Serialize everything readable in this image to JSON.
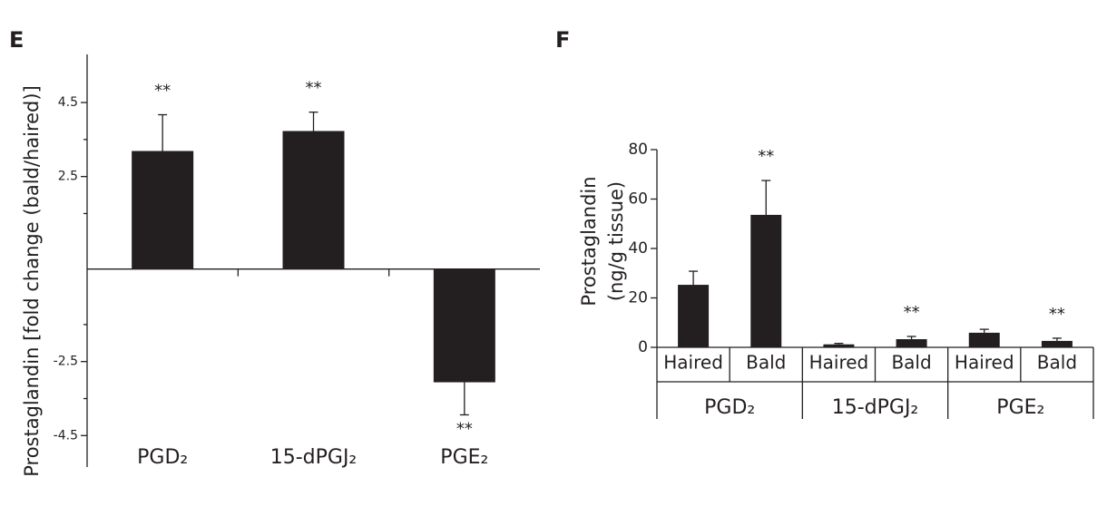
{
  "chart_data": [
    {
      "type": "bar",
      "title": "E",
      "y_label": "Prostaglandin [fold change (bald/haired)]",
      "categories": [
        "PGD₂",
        "15-dPGJ₂",
        "PGE₂"
      ],
      "values": [
        3.19,
        3.73,
        -3.06
      ],
      "errors": [
        0.98,
        0.51,
        0.88
      ],
      "significance": [
        "**",
        "**",
        "**"
      ],
      "color": "#231f20",
      "ylim": [
        -5.35,
        5.8
      ],
      "yticks": [
        -4.5,
        -2.5,
        2.5,
        4.5
      ],
      "minor_yticks": [
        -3.5,
        -1.5,
        1.5,
        3.5
      ]
    },
    {
      "type": "bar",
      "title": "F",
      "y_label": [
        "Prostaglandin",
        "(ng/g tissue)"
      ],
      "categories": [
        "Haired",
        "Bald",
        "Haired",
        "Bald",
        "Haired",
        "Bald"
      ],
      "groups": [
        "PGD₂",
        "15-dPGJ₂",
        "PGE₂"
      ],
      "values": [
        25.3,
        53.6,
        1.2,
        3.3,
        5.9,
        2.6
      ],
      "errors": [
        5.5,
        13.9,
        0.4,
        1.1,
        1.4,
        1.1
      ],
      "significance": [
        null,
        "**",
        null,
        "**",
        null,
        "**"
      ],
      "color": "#231f20",
      "ylim": [
        0,
        80
      ],
      "yticks": [
        0,
        20,
        40,
        60,
        80
      ]
    }
  ]
}
